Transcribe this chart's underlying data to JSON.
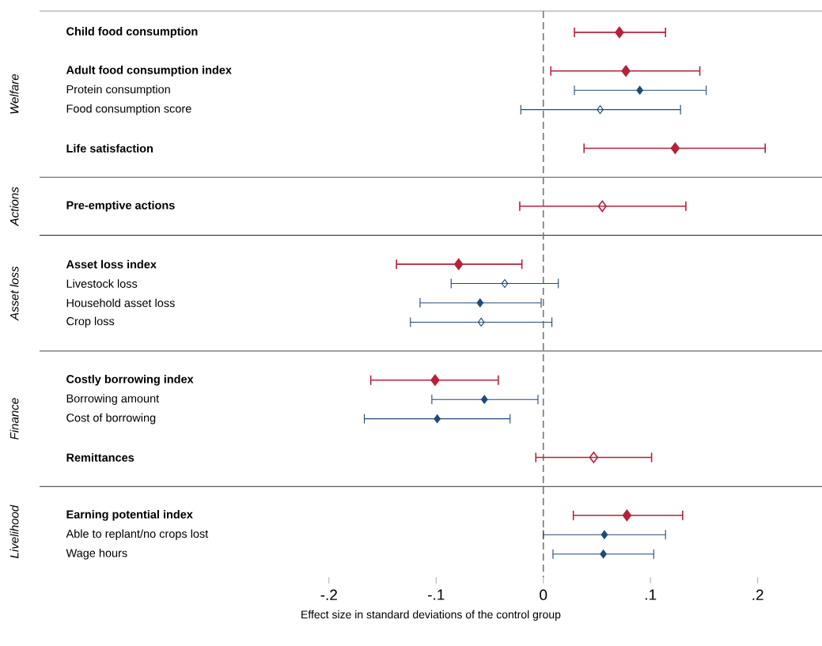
{
  "chart_data": {
    "type": "scatter",
    "orientation": "horizontal",
    "xlabel": "Effect size in standard deviations of the control group",
    "categories": [
      "Child food consumption",
      null,
      "Adult food consumption index",
      "Protein consumption",
      "Food consumption score",
      null,
      "Life satisfaction",
      null,
      null,
      "Pre-emptive actions",
      null,
      null,
      "Asset loss index",
      "Livestock loss",
      "Household asset loss",
      "Crop loss",
      null,
      null,
      "Costly borrowing index",
      "Borrowing amount",
      "Cost of borrowing",
      null,
      "Remittances",
      null,
      null,
      "Earning potential index",
      "Able to replant/no crops lost",
      "Wage hours"
    ],
    "series": [
      {
        "color": "#b5223a",
        "values": [
          0.071,
          null,
          0.077,
          null,
          null,
          null,
          0.123,
          null,
          null,
          null,
          null,
          null,
          -0.079,
          null,
          null,
          null,
          null,
          null,
          -0.101,
          null,
          null,
          null,
          null,
          null,
          null,
          0.078,
          null,
          null
        ],
        "errors": [
          [
            0.029,
            0.114
          ],
          null,
          [
            0.007,
            0.146
          ],
          null,
          null,
          null,
          [
            0.038,
            0.207
          ],
          null,
          null,
          null,
          null,
          null,
          [
            -0.137,
            -0.02
          ],
          null,
          null,
          null,
          null,
          null,
          [
            -0.161,
            -0.042
          ],
          null,
          null,
          null,
          null,
          null,
          null,
          [
            0.028,
            0.13
          ],
          null,
          null
        ]
      },
      {
        "color": "#b5223a",
        "values": [
          null,
          null,
          null,
          null,
          null,
          null,
          null,
          null,
          null,
          0.055,
          null,
          null,
          null,
          null,
          null,
          null,
          null,
          null,
          null,
          null,
          null,
          null,
          0.047,
          null,
          null,
          null,
          null,
          null
        ],
        "errors": [
          null,
          null,
          null,
          null,
          null,
          null,
          null,
          null,
          null,
          [
            -0.022,
            0.133
          ],
          null,
          null,
          null,
          null,
          null,
          null,
          null,
          null,
          null,
          null,
          null,
          null,
          [
            -0.007,
            0.101
          ],
          null,
          null,
          null,
          null,
          null
        ]
      },
      {
        "color": "#1f4a75",
        "values": [
          null,
          null,
          null,
          0.09,
          null,
          null,
          null,
          null,
          null,
          null,
          null,
          null,
          null,
          null,
          -0.059,
          null,
          null,
          null,
          null,
          -0.055,
          -0.099,
          null,
          null,
          null,
          null,
          null,
          0.057,
          0.056
        ],
        "errors": [
          null,
          null,
          null,
          [
            0.029,
            0.152
          ],
          null,
          null,
          null,
          null,
          null,
          null,
          null,
          null,
          null,
          null,
          [
            -0.115,
            -0.002
          ],
          null,
          null,
          null,
          null,
          [
            -0.104,
            -0.005
          ],
          [
            -0.167,
            -0.031
          ],
          null,
          null,
          null,
          null,
          null,
          [
            0.0,
            0.114
          ],
          [
            0.009,
            0.103
          ]
        ]
      },
      {
        "color": "#1f4a75",
        "values": [
          null,
          null,
          null,
          null,
          0.053,
          null,
          null,
          null,
          null,
          null,
          null,
          null,
          null,
          -0.036,
          null,
          -0.058,
          null,
          null,
          null,
          null,
          null,
          null,
          null,
          null,
          null,
          null,
          null,
          null
        ],
        "errors": [
          null,
          null,
          null,
          null,
          [
            -0.021,
            0.128
          ],
          null,
          null,
          null,
          null,
          null,
          null,
          null,
          null,
          [
            -0.086,
            0.014
          ],
          null,
          [
            -0.124,
            0.008
          ],
          null,
          null,
          null,
          null,
          null,
          null,
          null,
          null,
          null,
          null,
          null,
          null
        ]
      }
    ],
    "marker": "diamond",
    "xlim": [
      -0.47,
      0.26
    ],
    "xticks": [
      {
        "value": -0.2,
        "label": "-.2"
      },
      {
        "value": -0.1,
        "label": "-.1"
      },
      0,
      {
        "value": 0.1,
        "label": ".1"
      },
      {
        "value": 0.2,
        "label": ".2"
      }
    ],
    "ref_lines": [
      {
        "axis": "x",
        "value": 0,
        "color": "#777777",
        "line_style": "dashed"
      }
    ],
    "annotations": [
      "Welfare",
      "Actions",
      "Asset loss",
      "Finance",
      "Livelihood"
    ]
  }
}
